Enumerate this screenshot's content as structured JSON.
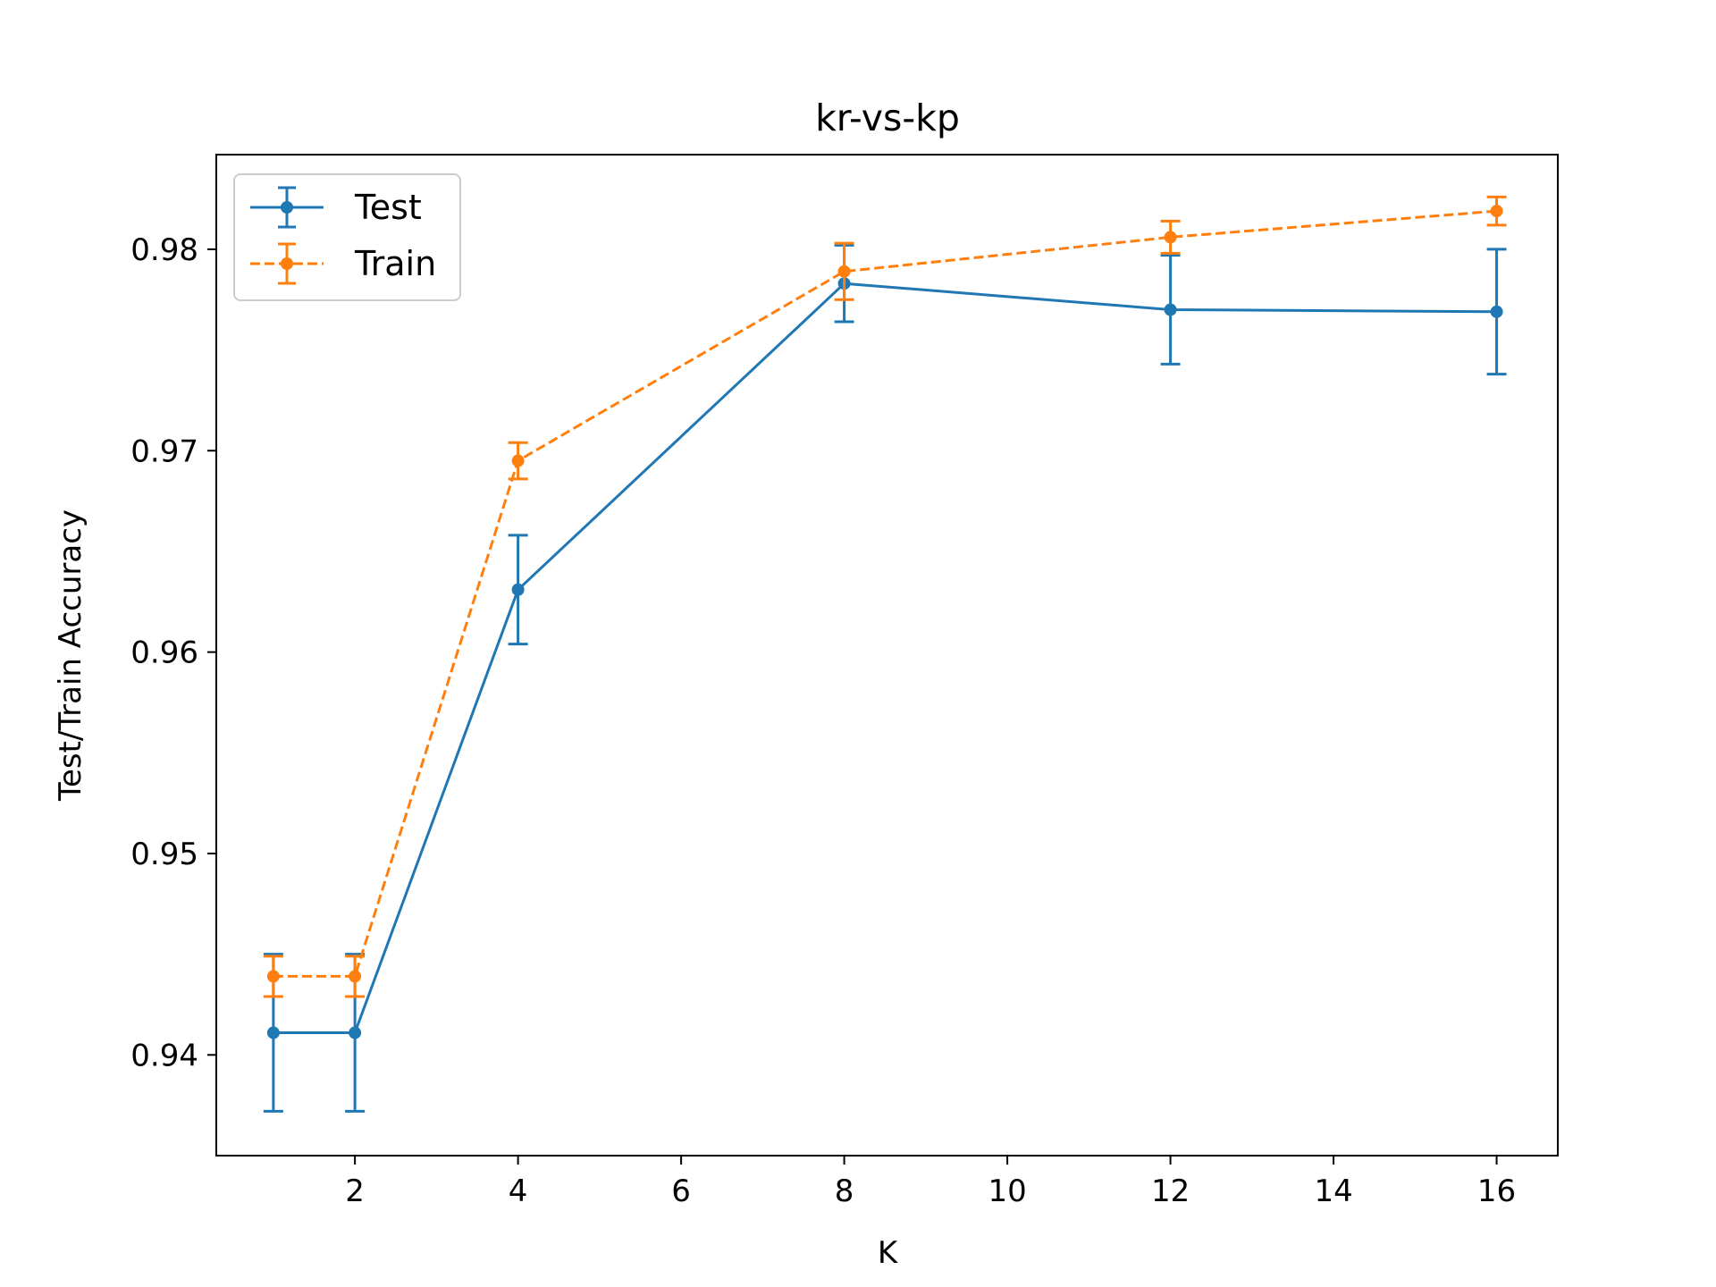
{
  "chart_data": {
    "type": "line",
    "title": "kr-vs-kp",
    "xlabel": "K",
    "ylabel": "Test/Train Accuracy",
    "xlim": [
      0.3,
      16.75
    ],
    "ylim": [
      0.935,
      0.9847
    ],
    "xticks": [
      2,
      4,
      6,
      8,
      10,
      12,
      14,
      16
    ],
    "yticks": [
      0.94,
      0.95,
      0.96,
      0.97,
      0.98
    ],
    "ytick_labels": [
      "0.94",
      "0.95",
      "0.96",
      "0.97",
      "0.98"
    ],
    "grid": false,
    "legend_position": "upper-left",
    "series": [
      {
        "name": "Test",
        "color": "#1f77b4",
        "linestyle": "solid",
        "x": [
          1,
          2,
          4,
          8,
          12,
          16
        ],
        "y": [
          0.9411,
          0.9411,
          0.9631,
          0.9783,
          0.977,
          0.9769
        ],
        "err": [
          0.0039,
          0.0039,
          0.0027,
          0.0019,
          0.0027,
          0.0031
        ]
      },
      {
        "name": "Train",
        "color": "#ff7f0e",
        "linestyle": "dashed",
        "x": [
          1,
          2,
          4,
          8,
          12,
          16
        ],
        "y": [
          0.9439,
          0.9439,
          0.9695,
          0.9789,
          0.9806,
          0.9819
        ],
        "err": [
          0.001,
          0.001,
          0.0009,
          0.0014,
          0.0008,
          0.0007
        ]
      }
    ]
  }
}
